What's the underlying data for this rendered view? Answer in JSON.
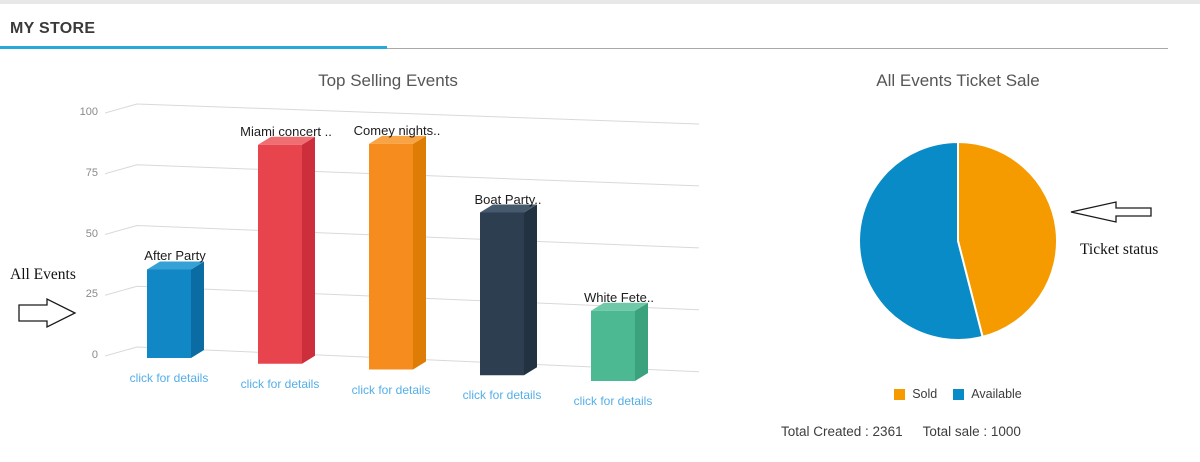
{
  "page": {
    "title": "MY STORE"
  },
  "theme": {
    "header_underline_blue": "#29a8dc",
    "header_underline_gray": "#a9a9a9",
    "grid_color": "#d9d9d9",
    "link_color": "#54aee8",
    "title_color": "#565656"
  },
  "annotations": {
    "all_events": "All Events",
    "ticket_status": "Ticket status"
  },
  "stats": {
    "total_created": "Total Created : 2361",
    "total_sale": "Total sale : 1000"
  },
  "chart_data": [
    {
      "type": "bar",
      "style": "3d-column",
      "title": "Top Selling Events",
      "categories": [
        "After Party",
        "Miami concert ..",
        "Comey nights..",
        "Boat Party..",
        "White Fete.."
      ],
      "values": [
        35,
        86,
        88,
        63,
        27
      ],
      "bar_link_label": "click for details",
      "ylim": [
        0,
        100
      ],
      "yticks": [
        0,
        25,
        50,
        75,
        100
      ],
      "grid": true,
      "colors_front": [
        "#1287c6",
        "#e8444e",
        "#f68c1e",
        "#2c3e50",
        "#4cb992"
      ],
      "colors_top": [
        "#36a1d5",
        "#ee6e72",
        "#f8a344",
        "#465a6e",
        "#6fc9a9"
      ],
      "colors_side": [
        "#0a6ca3",
        "#cc2f3b",
        "#dd7d05",
        "#233240",
        "#3aa37e"
      ]
    },
    {
      "type": "pie",
      "title": "All Events Ticket Sale",
      "labels": [
        "Sold",
        "Available"
      ],
      "values_percent": [
        46,
        54
      ],
      "colors": [
        "#f59b00",
        "#088bc7"
      ],
      "legend_position": "bottom",
      "annotations": [
        "Total Created : 2361",
        "Total sale : 1000"
      ]
    }
  ]
}
